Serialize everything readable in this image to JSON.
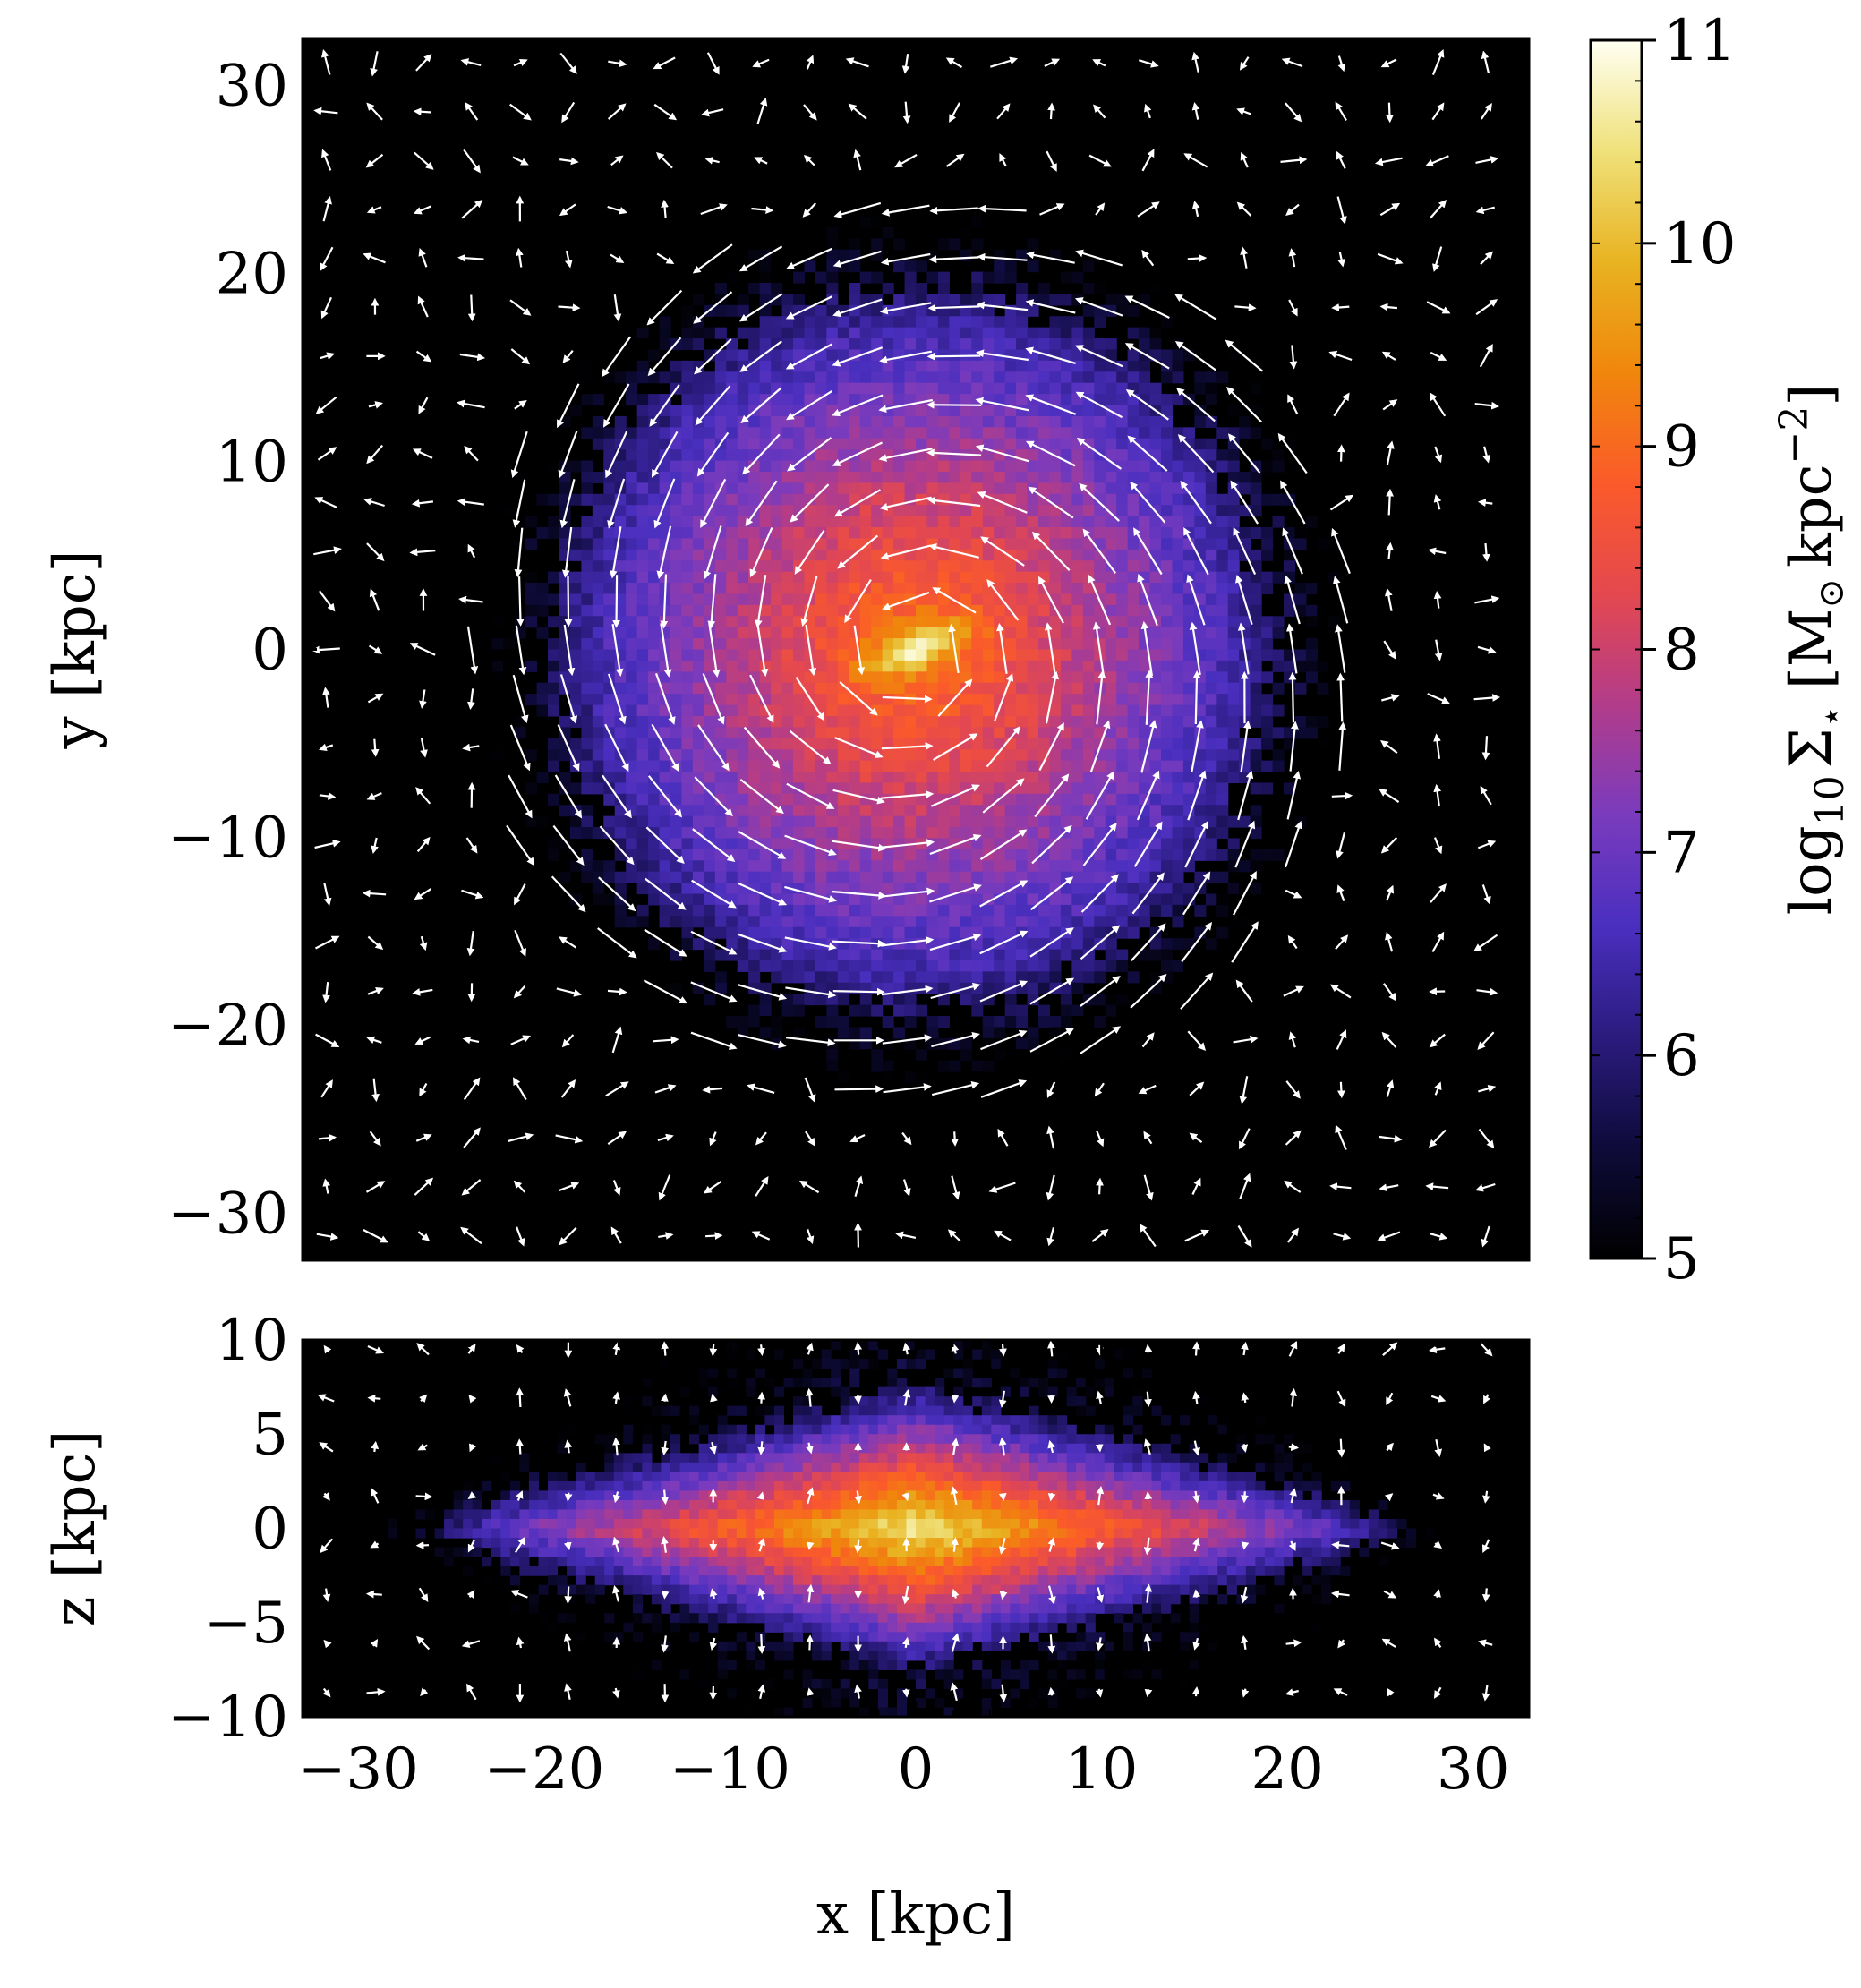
{
  "colors": {
    "background": "#ffffff",
    "arrows": "#ffffff",
    "axes": "#000000",
    "colormap": [
      "#000000",
      "#0e0b3a",
      "#2b1b7e",
      "#4a2fbf",
      "#7a3bbd",
      "#b23c8a",
      "#e4484f",
      "#fb5a2a",
      "#f0860c",
      "#e8b321",
      "#efe17a",
      "#fffff2"
    ]
  },
  "chart_data": [
    {
      "type": "heatmap",
      "panel": "face-on",
      "title": "",
      "xlabel": "",
      "ylabel": "y [kpc]",
      "xlim": [
        -33,
        33
      ],
      "ylim": [
        -32.5,
        32.5
      ],
      "yticks": [
        -30,
        -20,
        -10,
        0,
        10,
        20,
        30
      ],
      "yticklabels": [
        "−30",
        "−20",
        "−10",
        "0",
        "10",
        "20",
        "30"
      ],
      "xticks": [
        -30,
        -20,
        -10,
        0,
        10,
        20,
        30
      ],
      "xticklabels_visible": false,
      "values_description_units": "log10 surface density",
      "density_model": {
        "center": [
          0,
          0
        ],
        "peak": 10.8,
        "disk_scale_length_kpc": 5.5,
        "bar_length_kpc": 3
      },
      "overlay": {
        "type": "quiver",
        "color": "white",
        "rotation": "counter-clockwise",
        "grid_spacing_kpc": 2.6
      }
    },
    {
      "type": "heatmap",
      "panel": "edge-on",
      "title": "",
      "xlabel": "x [kpc]",
      "ylabel": "z [kpc]",
      "xlim": [
        -33,
        33
      ],
      "ylim": [
        -10,
        10
      ],
      "yticks": [
        -10,
        -5,
        0,
        5,
        10
      ],
      "yticklabels": [
        "−10",
        "−5",
        "0",
        "5",
        "10"
      ],
      "xticks": [
        -30,
        -20,
        -10,
        0,
        10,
        20,
        30
      ],
      "xticklabels": [
        "−30",
        "−20",
        "−10",
        "0",
        "10",
        "20",
        "30"
      ],
      "density_model": {
        "center": [
          0,
          0
        ],
        "peak": 10.8,
        "scale_height_kpc": 1.2,
        "radial_extent_kpc": 22
      },
      "overlay": {
        "type": "quiver",
        "color": "white",
        "grid_spacing_kpc": 2.6
      }
    },
    {
      "type": "colorbar",
      "label": "log10 Σ⋆ [M⊙ kpc−2]",
      "label_parts": {
        "log": "log",
        "sub": "10",
        "sigma": "Σ",
        "star": "⋆",
        "open": "[M",
        "sun": "⊙",
        "unit": "kpc",
        "exp": "−2",
        "close": "]"
      },
      "range": [
        5,
        11
      ],
      "ticks": [
        5,
        6,
        7,
        8,
        9,
        10,
        11
      ],
      "ticklabels": [
        "5",
        "6",
        "7",
        "8",
        "9",
        "10",
        "11"
      ]
    }
  ]
}
